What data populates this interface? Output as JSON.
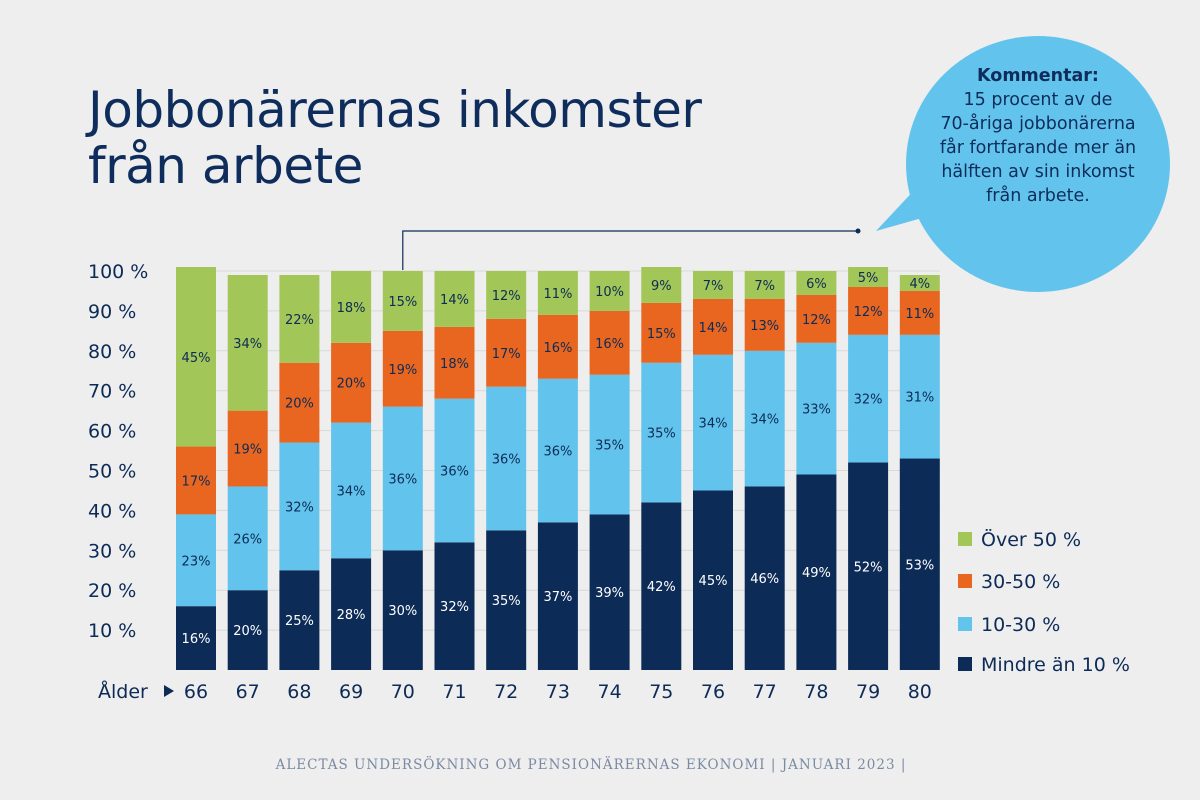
{
  "chart_data": {
    "type": "bar",
    "stacked": true,
    "title": [
      "Jobbonärernas inkomster",
      "från arbete"
    ],
    "xlabel": "Ålder",
    "categories": [
      "66",
      "67",
      "68",
      "69",
      "70",
      "71",
      "72",
      "73",
      "74",
      "75",
      "76",
      "77",
      "78",
      "79",
      "80"
    ],
    "series": [
      {
        "name": "Mindre än 10 %",
        "color": "#0d2b57",
        "label_color": "#ffffff",
        "values": [
          16,
          20,
          25,
          28,
          30,
          32,
          35,
          37,
          39,
          42,
          45,
          46,
          49,
          52,
          53
        ]
      },
      {
        "name": "10-30 %",
        "color": "#62c4ec",
        "label_color": "#0d2b57",
        "values": [
          23,
          26,
          32,
          34,
          36,
          36,
          36,
          36,
          35,
          35,
          34,
          34,
          33,
          32,
          31
        ]
      },
      {
        "name": "30-50 %",
        "color": "#e8661f",
        "label_color": "#0d2b57",
        "values": [
          17,
          19,
          20,
          20,
          19,
          18,
          17,
          16,
          16,
          15,
          14,
          13,
          12,
          12,
          11
        ]
      },
      {
        "name": "Över 50 %",
        "color": "#a2c657",
        "label_color": "#0d2b57",
        "values": [
          45,
          34,
          22,
          18,
          15,
          14,
          12,
          11,
          10,
          9,
          7,
          7,
          6,
          5,
          4
        ]
      }
    ],
    "value_suffix": "%",
    "ylim": [
      0,
      100
    ],
    "yticks": [
      10,
      20,
      30,
      40,
      50,
      60,
      70,
      80,
      90,
      100
    ],
    "ytick_labels": [
      "10 %",
      "20 %",
      "30 %",
      "40 %",
      "50 %",
      "60 %",
      "70 %",
      "80 %",
      "90 %",
      "100 %"
    ],
    "legend_order": [
      "Över 50 %",
      "30-50 %",
      "10-30 %",
      "Mindre än 10 %"
    ],
    "legend_position": "right",
    "annotation": {
      "heading": "Kommentar:",
      "lines": [
        "15 procent av de",
        "70-åriga jobbonärerna",
        "får fortfarande mer än",
        "hälften av sin inkomst",
        "från arbete."
      ],
      "target_category": "70"
    }
  },
  "colors": {
    "background": "#eeeeee",
    "navy": "#0d2b57",
    "bubble": "#62c4ec"
  },
  "footer": {
    "source": "ALECTAS UNDERSÖKNING OM PENSIONÄRERNAS EKONOMI | JANUARI 2023 |"
  }
}
